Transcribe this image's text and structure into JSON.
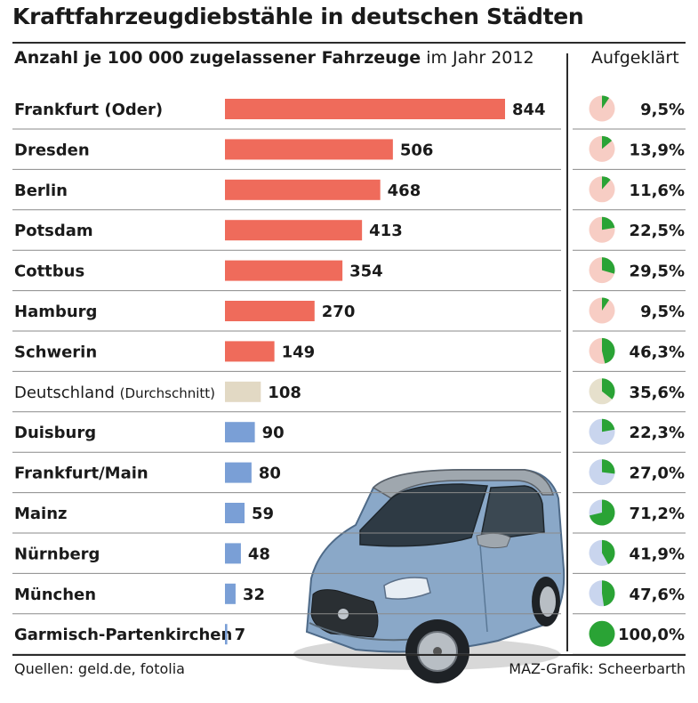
{
  "title": "Kraftfahrzeugdiebstähle in deutschen Städten",
  "subtitle_bold": "Anzahl je 100 000 zugelassener Fahrzeuge",
  "subtitle_rest": "im Jahr 2012",
  "right_header": "Aufgeklärt",
  "footer_left": "Quellen: geld.de, fotolia",
  "footer_right": "MAZ-Grafik: Scheerbarth",
  "colors": {
    "red_bar": "#ef6b5b",
    "beige_bar": "#e2d9c4",
    "blue_bar": "#7a9fd6",
    "pie_green": "#2aa335",
    "pie_bg_red": "#f7cdc4",
    "pie_bg_beige": "#e6e0cc",
    "pie_bg_blue": "#c9d5ee"
  },
  "chart_data": {
    "type": "bar",
    "title": "Kraftfahrzeugdiebstähle in deutschen Städten",
    "ylabel": "Anzahl je 100 000 zugelassener Fahrzeuge im Jahr 2012",
    "categories": [
      {
        "name": "Frankfurt (Oder)",
        "note": "",
        "group": "red"
      },
      {
        "name": "Dresden",
        "note": "",
        "group": "red"
      },
      {
        "name": "Berlin",
        "note": "",
        "group": "red"
      },
      {
        "name": "Potsdam",
        "note": "",
        "group": "red"
      },
      {
        "name": "Cottbus",
        "note": "",
        "group": "red"
      },
      {
        "name": "Hamburg",
        "note": "",
        "group": "red"
      },
      {
        "name": "Schwerin",
        "note": "",
        "group": "red"
      },
      {
        "name": "Deutschland",
        "note": "(Durchschnitt)",
        "group": "beige"
      },
      {
        "name": "Duisburg",
        "note": "",
        "group": "blue"
      },
      {
        "name": "Frankfurt/Main",
        "note": "",
        "group": "blue"
      },
      {
        "name": "Mainz",
        "note": "",
        "group": "blue"
      },
      {
        "name": "Nürnberg",
        "note": "",
        "group": "blue"
      },
      {
        "name": "München",
        "note": "",
        "group": "blue"
      },
      {
        "name": "Garmisch-Partenkirchen",
        "note": "",
        "group": "blue"
      }
    ],
    "values": [
      844,
      506,
      468,
      413,
      354,
      270,
      149,
      108,
      90,
      80,
      59,
      48,
      32,
      7
    ],
    "aufgeklaert": [
      9.5,
      13.9,
      11.6,
      22.5,
      29.5,
      9.5,
      46.3,
      35.6,
      22.3,
      27.0,
      71.2,
      41.9,
      47.6,
      100.0
    ],
    "aufgeklaert_labels": [
      "9,5%",
      "13,9%",
      "11,6%",
      "22,5%",
      "29,5%",
      "9,5%",
      "46,3%",
      "35,6%",
      "22,3%",
      "27,0%",
      "71,2%",
      "41,9%",
      "47,6%",
      "100,0%"
    ],
    "xlim": [
      0,
      844
    ]
  }
}
